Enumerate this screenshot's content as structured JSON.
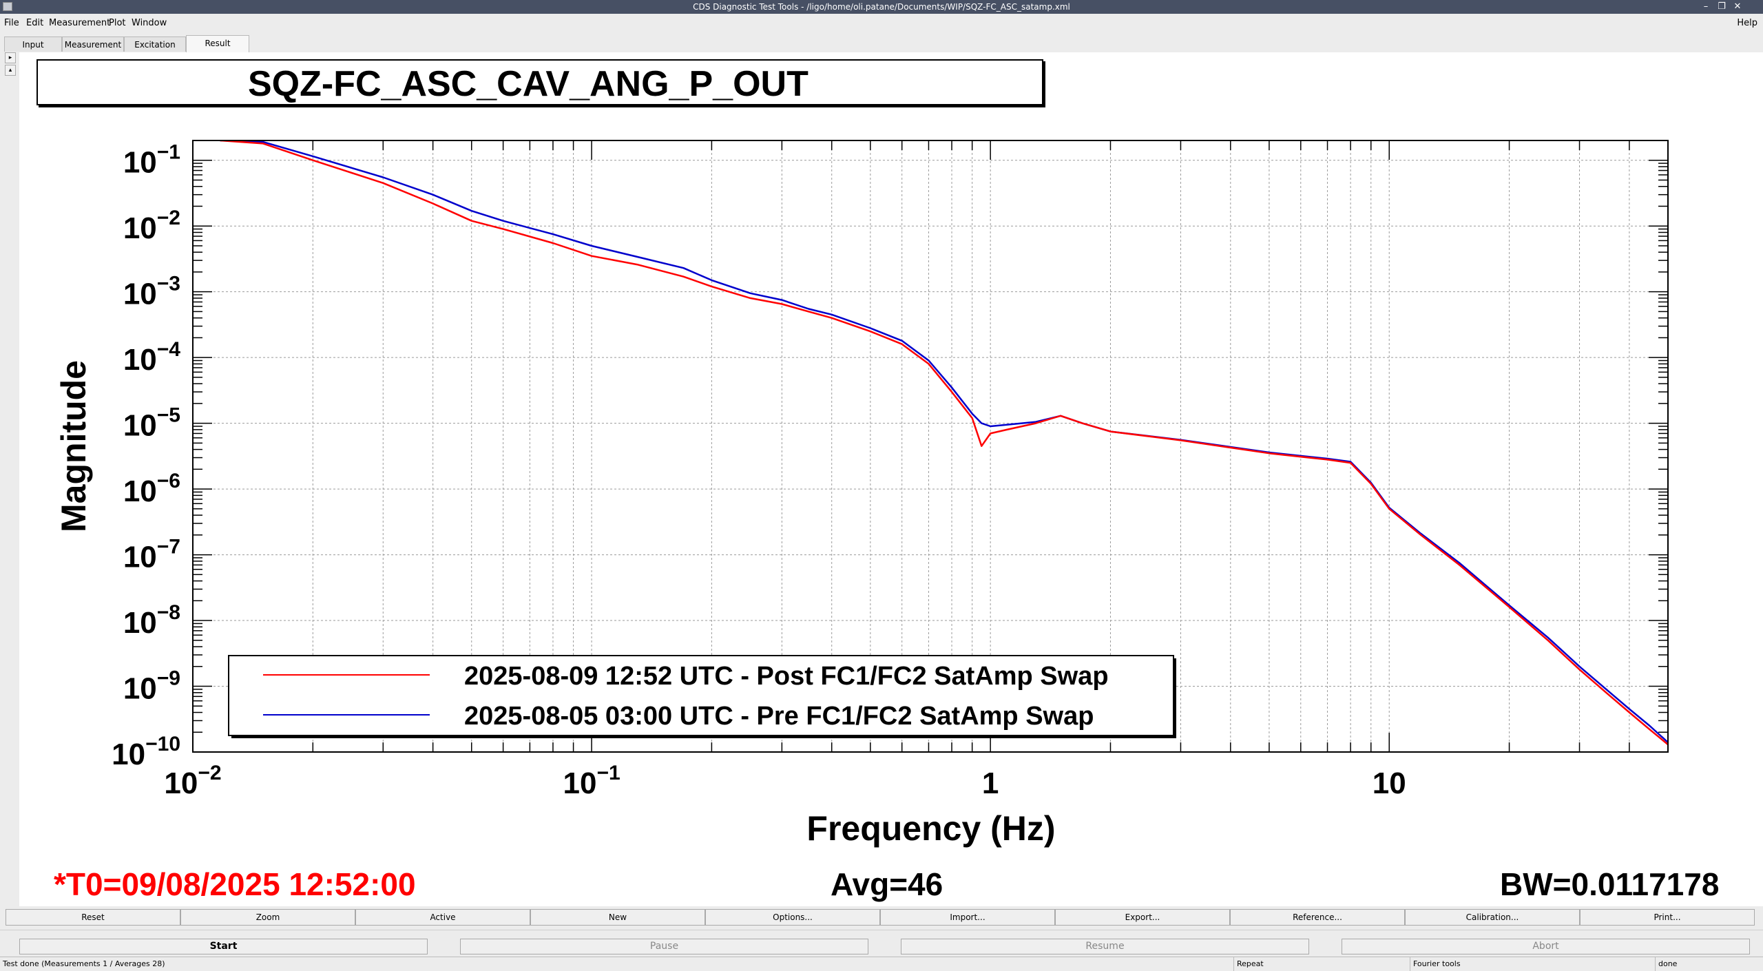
{
  "window": {
    "title": "CDS Diagnostic Test Tools - /ligo/home/oli.patane/Documents/WIP/SQZ-FC_ASC_satamp.xml",
    "controls": [
      "–",
      "❐",
      "✕"
    ]
  },
  "menu": {
    "items": [
      "File",
      "Edit",
      "Measurement",
      "Plot",
      "Window"
    ],
    "help": "Help"
  },
  "tabs": [
    {
      "label": "Input"
    },
    {
      "label": "Measurement"
    },
    {
      "label": "Excitation"
    },
    {
      "label": "Result"
    }
  ],
  "active_tab": "Result",
  "plot_title": "SQZ-FC_ASC_CAV_ANG_P_OUT",
  "status_line": {
    "t0": "*T0=09/08/2025 12:52:00",
    "avg": "Avg=46",
    "bw": "BW=0.0117178",
    "t0_color": "#ff0000"
  },
  "chart_data": {
    "type": "line",
    "xlabel": "Frequency (Hz)",
    "ylabel": "Magnitude",
    "xscale": "log",
    "yscale": "log",
    "xlim": [
      0.01,
      50
    ],
    "ylim": [
      1e-10,
      0.2
    ],
    "x_ticks": [
      {
        "value": 0.01,
        "base": "10",
        "exp": "−2"
      },
      {
        "value": 0.1,
        "base": "10",
        "exp": "−1"
      },
      {
        "value": 1,
        "base": "1",
        "exp": ""
      },
      {
        "value": 10,
        "base": "10",
        "exp": ""
      }
    ],
    "y_ticks": [
      {
        "value": 0.1,
        "exp": "−1"
      },
      {
        "value": 0.01,
        "exp": "−2"
      },
      {
        "value": 0.001,
        "exp": "−3"
      },
      {
        "value": 0.0001,
        "exp": "−4"
      },
      {
        "value": 1e-05,
        "exp": "−5"
      },
      {
        "value": 1e-06,
        "exp": "−6"
      },
      {
        "value": 1e-07,
        "exp": "−7"
      },
      {
        "value": 1e-08,
        "exp": "−8"
      },
      {
        "value": 1e-09,
        "exp": "−9"
      },
      {
        "value": 1e-10,
        "exp": "−10"
      }
    ],
    "grid": true,
    "legend_position": "bottom-left",
    "series": [
      {
        "name": "2025-08-09 12:52 UTC - Post FC1/FC2 SatAmp Swap",
        "color": "#ff0000",
        "x": [
          0.0117,
          0.015,
          0.02,
          0.03,
          0.04,
          0.05,
          0.06,
          0.08,
          0.1,
          0.13,
          0.17,
          0.2,
          0.25,
          0.3,
          0.35,
          0.4,
          0.5,
          0.6,
          0.7,
          0.8,
          0.9,
          0.95,
          1.0,
          1.1,
          1.3,
          1.5,
          1.7,
          2.0,
          3.0,
          5.0,
          7.0,
          8.0,
          9.0,
          10,
          12,
          15,
          20,
          25,
          30,
          35,
          40,
          45,
          50
        ],
        "y": [
          0.2,
          0.18,
          0.1,
          0.045,
          0.022,
          0.012,
          0.009,
          0.0055,
          0.0035,
          0.0026,
          0.0017,
          0.0012,
          0.0008,
          0.00065,
          0.0005,
          0.0004,
          0.00025,
          0.00016,
          8e-05,
          3e-05,
          1.2e-05,
          4.5e-06,
          7e-06,
          8e-06,
          1e-05,
          1.3e-05,
          1e-05,
          7.5e-06,
          5.5e-06,
          3.5e-06,
          2.8e-06,
          2.5e-06,
          1.2e-06,
          5e-07,
          2e-07,
          7e-08,
          1.6e-08,
          5e-09,
          1.8e-09,
          8e-10,
          4e-10,
          2.2e-10,
          1.3e-10
        ]
      },
      {
        "name": "2025-08-05 03:00 UTC - Pre FC1/FC2 SatAmp Swap",
        "color": "#0000cc",
        "x": [
          0.0117,
          0.015,
          0.02,
          0.03,
          0.04,
          0.05,
          0.06,
          0.08,
          0.1,
          0.13,
          0.17,
          0.2,
          0.25,
          0.3,
          0.35,
          0.4,
          0.5,
          0.6,
          0.7,
          0.8,
          0.9,
          0.95,
          1.0,
          1.1,
          1.3,
          1.5,
          1.7,
          2.0,
          3.0,
          5.0,
          7.0,
          8.0,
          9.0,
          10,
          12,
          15,
          20,
          25,
          30,
          35,
          40,
          45,
          50
        ],
        "y": [
          0.2,
          0.19,
          0.115,
          0.055,
          0.03,
          0.017,
          0.012,
          0.0075,
          0.005,
          0.0034,
          0.0023,
          0.0015,
          0.00095,
          0.00075,
          0.00055,
          0.00045,
          0.00028,
          0.00018,
          9e-05,
          3.5e-05,
          1.4e-05,
          1e-05,
          9e-06,
          9.5e-06,
          1.05e-05,
          1.3e-05,
          1e-05,
          7.5e-06,
          5.6e-06,
          3.6e-06,
          2.9e-06,
          2.6e-06,
          1.25e-06,
          5.2e-07,
          2.1e-07,
          7.5e-08,
          1.7e-08,
          5.5e-09,
          2e-09,
          9e-10,
          4.5e-10,
          2.5e-10,
          1.4e-10
        ]
      }
    ]
  },
  "buttons": [
    "Reset",
    "Zoom",
    "Active",
    "New",
    "Options...",
    "Import...",
    "Export...",
    "Reference...",
    "Calibration...",
    "Print..."
  ],
  "controls": [
    "Start",
    "Pause",
    "Resume",
    "Abort"
  ],
  "statusbar": {
    "message": "Test done (Measurements 1 / Averages 28)",
    "repeat": "Repeat",
    "tools": "Fourier tools",
    "state": "done"
  }
}
